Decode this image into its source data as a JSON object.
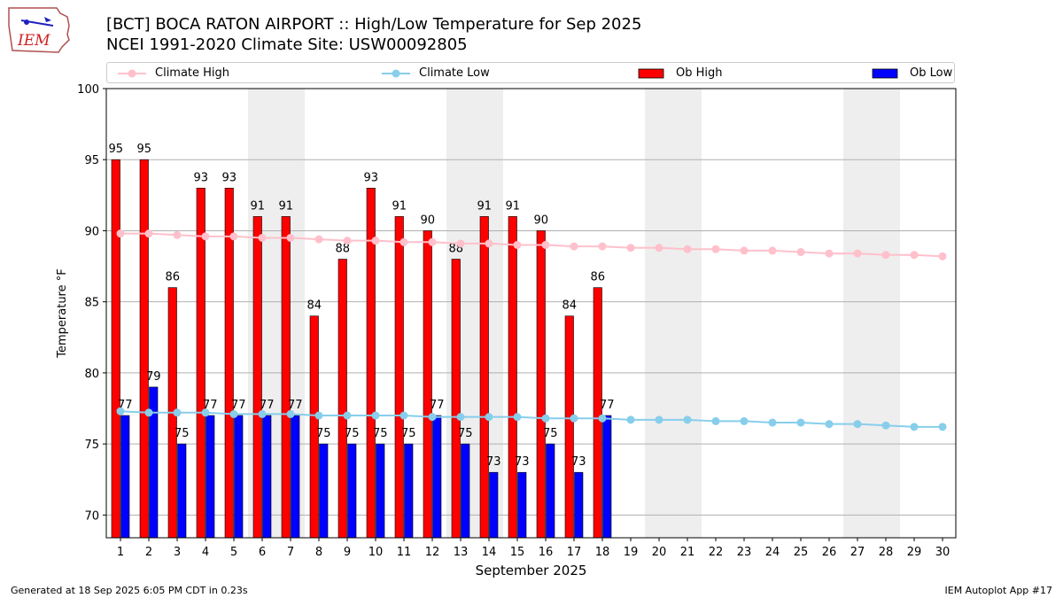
{
  "header": {
    "title_line1": "[BCT] BOCA RATON AIRPORT :: High/Low Temperature for Sep 2025",
    "title_line2": "NCEI 1991-2020 Climate Site: USW00092805"
  },
  "logo": {
    "text": "IEM"
  },
  "footer": {
    "generated": "Generated at 18 Sep 2025 6:05 PM CDT in 0.23s",
    "app": "IEM Autoplot App #17"
  },
  "chart_data": {
    "type": "bar",
    "xlabel": "September 2025",
    "ylabel": "Temperature °F",
    "ylim": [
      68.4,
      100
    ],
    "yticks": [
      70,
      75,
      80,
      85,
      90,
      95,
      100
    ],
    "grid": "horizontal",
    "legend_position": "top",
    "weekend_shading": [
      [
        6,
        7
      ],
      [
        13,
        14
      ],
      [
        20,
        21
      ],
      [
        27,
        28
      ]
    ],
    "categories": [
      "1",
      "2",
      "3",
      "4",
      "5",
      "6",
      "7",
      "8",
      "9",
      "10",
      "11",
      "12",
      "13",
      "14",
      "15",
      "16",
      "17",
      "18",
      "19",
      "20",
      "21",
      "22",
      "23",
      "24",
      "25",
      "26",
      "27",
      "28",
      "29",
      "30"
    ],
    "bar_series": [
      {
        "name": "Ob High",
        "color": "#ff0000",
        "values": [
          95,
          95,
          86,
          93,
          93,
          91,
          91,
          84,
          88,
          93,
          91,
          90,
          88,
          91,
          91,
          90,
          84,
          86
        ]
      },
      {
        "name": "Ob Low",
        "color": "#0000ff",
        "values": [
          77,
          79,
          75,
          77,
          77,
          77,
          77,
          75,
          75,
          75,
          75,
          77,
          75,
          73,
          73,
          75,
          73,
          77
        ]
      }
    ],
    "line_series": [
      {
        "name": "Climate High",
        "color": "#ffc0cb",
        "values": [
          89.8,
          89.8,
          89.7,
          89.6,
          89.6,
          89.5,
          89.5,
          89.4,
          89.3,
          89.3,
          89.2,
          89.2,
          89.1,
          89.1,
          89.0,
          89.0,
          88.9,
          88.9,
          88.8,
          88.8,
          88.7,
          88.7,
          88.6,
          88.6,
          88.5,
          88.4,
          88.4,
          88.3,
          88.3,
          88.2
        ]
      },
      {
        "name": "Climate Low",
        "color": "#87ceeb",
        "values": [
          77.3,
          77.2,
          77.2,
          77.2,
          77.1,
          77.1,
          77.1,
          77.0,
          77.0,
          77.0,
          77.0,
          76.9,
          76.9,
          76.9,
          76.9,
          76.8,
          76.8,
          76.8,
          76.7,
          76.7,
          76.7,
          76.6,
          76.6,
          76.5,
          76.5,
          76.4,
          76.4,
          76.3,
          76.2,
          76.2
        ]
      }
    ],
    "legend_order": [
      "Climate High",
      "Climate Low",
      "Ob High",
      "Ob Low"
    ]
  }
}
